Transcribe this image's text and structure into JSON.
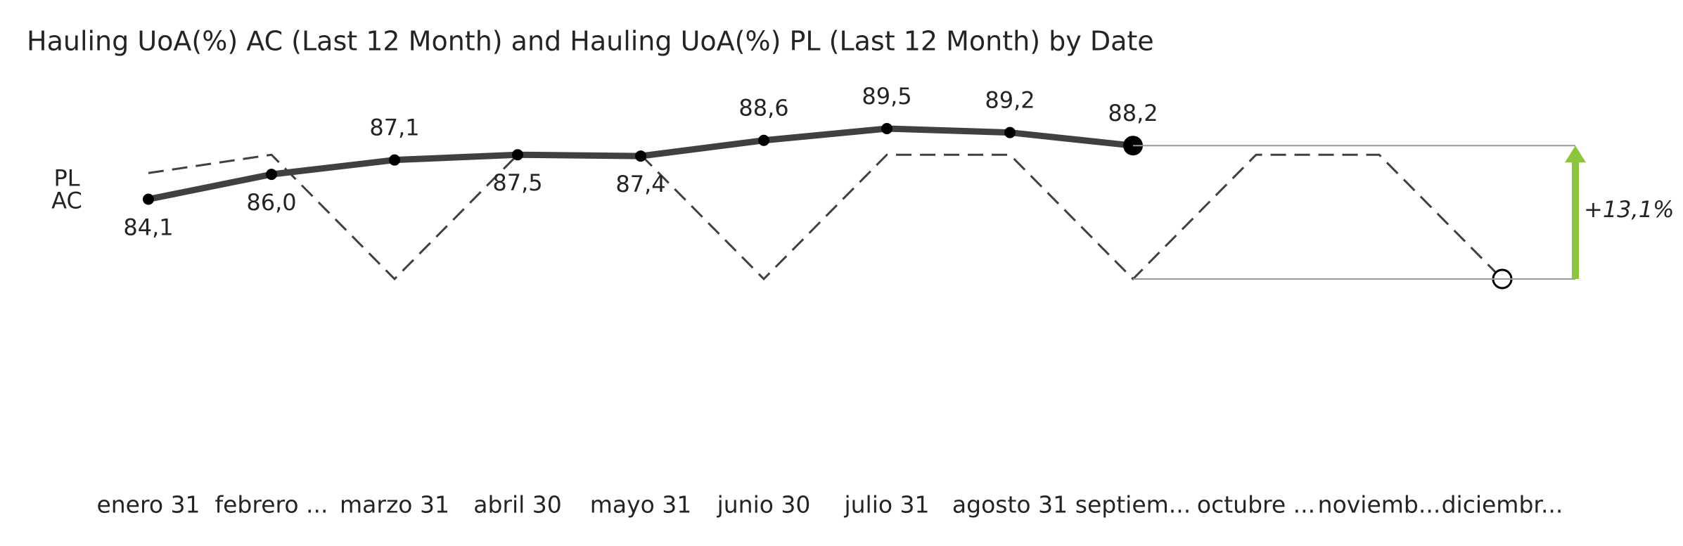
{
  "chart_data": {
    "type": "line",
    "title": "Hauling UoA(%) AC (Last 12 Month) and Hauling UoA(%) PL (Last 12 Month) by Date",
    "categories": [
      "enero 31",
      "febrero ...",
      "marzo 31",
      "abril 30",
      "mayo 31",
      "junio 30",
      "julio 31",
      "agosto 31",
      "septiem...",
      "octubre ...",
      "noviemb...",
      "diciembr..."
    ],
    "series": [
      {
        "name": "PL",
        "color": "#404040",
        "dashed": true,
        "values": [
          86.1,
          87.5,
          78.0,
          87.5,
          87.5,
          78.0,
          87.5,
          87.5,
          78.0,
          87.5,
          87.5,
          78.0
        ]
      },
      {
        "name": "AC",
        "color": "#404040",
        "values": [
          84.1,
          86.0,
          87.1,
          87.5,
          87.4,
          88.6,
          89.5,
          89.2,
          88.2,
          null,
          null,
          null
        ],
        "value_labels": [
          "84,1",
          "86,0",
          "87,1",
          "87,5",
          "87,4",
          "88,6",
          "89,5",
          "89,2",
          "88,2",
          null,
          null,
          null
        ]
      }
    ],
    "variance": {
      "value": 13.1,
      "label": "+13,1%",
      "color": "#8cc63f"
    }
  }
}
